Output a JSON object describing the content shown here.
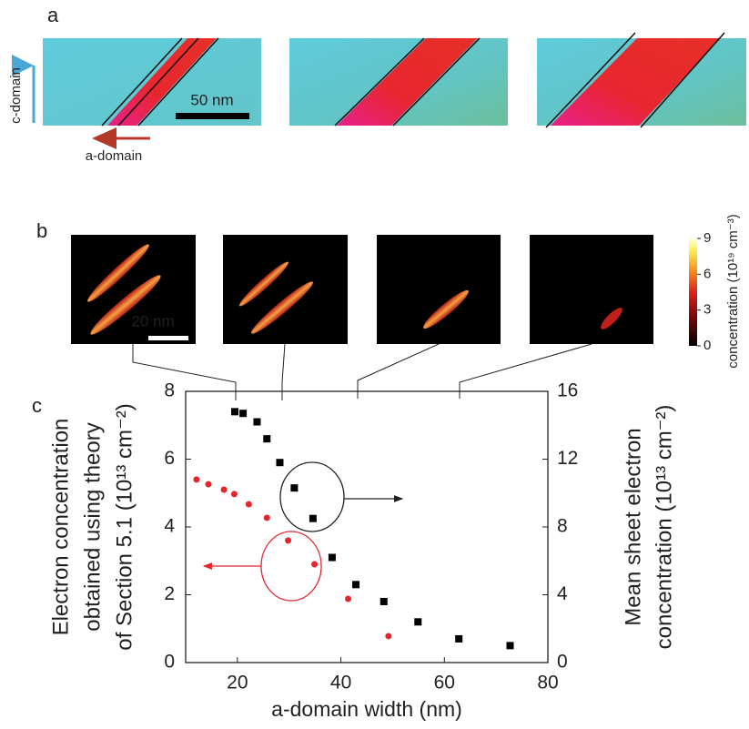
{
  "panel_labels": [
    "a",
    "b",
    "c"
  ],
  "panel_a": {
    "scale_bar": "50 nm",
    "c_domain": "c-domain",
    "a_domain": "a-domain"
  },
  "panel_b": {
    "scale_bar": "20 nm",
    "colorbar": {
      "label": "concentration (10¹⁹ cm⁻³)",
      "lim": [
        0,
        9
      ],
      "ticks": [
        0,
        3,
        6,
        9
      ]
    }
  },
  "chart_data": {
    "type": "scatter",
    "x_label": "a-domain width (nm)",
    "y_label": [
      "Electron concentration",
      "obtained using theory",
      "of Section 5.1 (10¹³ cm⁻²)"
    ],
    "y2_label": [
      "Mean sheet electron",
      "concentration (10¹³ cm⁻²)"
    ],
    "xlim": [
      10,
      80
    ],
    "xticks": [
      20,
      40,
      60,
      80
    ],
    "ylim": [
      0,
      8
    ],
    "yticks": [
      0,
      2,
      4,
      6,
      8
    ],
    "y2lim": [
      0,
      16
    ],
    "y2ticks": [
      0,
      4,
      8,
      12,
      16
    ],
    "series": [
      {
        "color": "#e3262c",
        "marker": "circle",
        "x": [
          12.1,
          14.4,
          17.4,
          19.4,
          22.2,
          25.7,
          29.8,
          34.9,
          41.4,
          49.2
        ],
        "values": [
          5.4,
          5.26,
          5.1,
          4.97,
          4.67,
          4.27,
          3.6,
          2.9,
          1.88,
          0.78
        ]
      },
      {
        "color": "#000000",
        "marker": "square",
        "axis": "y2",
        "x": [
          19.5,
          21.1,
          23.8,
          25.7,
          28.2,
          31.0,
          34.6,
          38.3,
          42.9,
          48.3,
          54.9,
          62.8,
          72.7
        ],
        "values": [
          14.8,
          14.7,
          14.2,
          13.2,
          11.8,
          10.3,
          8.5,
          6.2,
          4.6,
          3.6,
          2.4,
          1.4,
          1.0
        ]
      }
    ]
  }
}
